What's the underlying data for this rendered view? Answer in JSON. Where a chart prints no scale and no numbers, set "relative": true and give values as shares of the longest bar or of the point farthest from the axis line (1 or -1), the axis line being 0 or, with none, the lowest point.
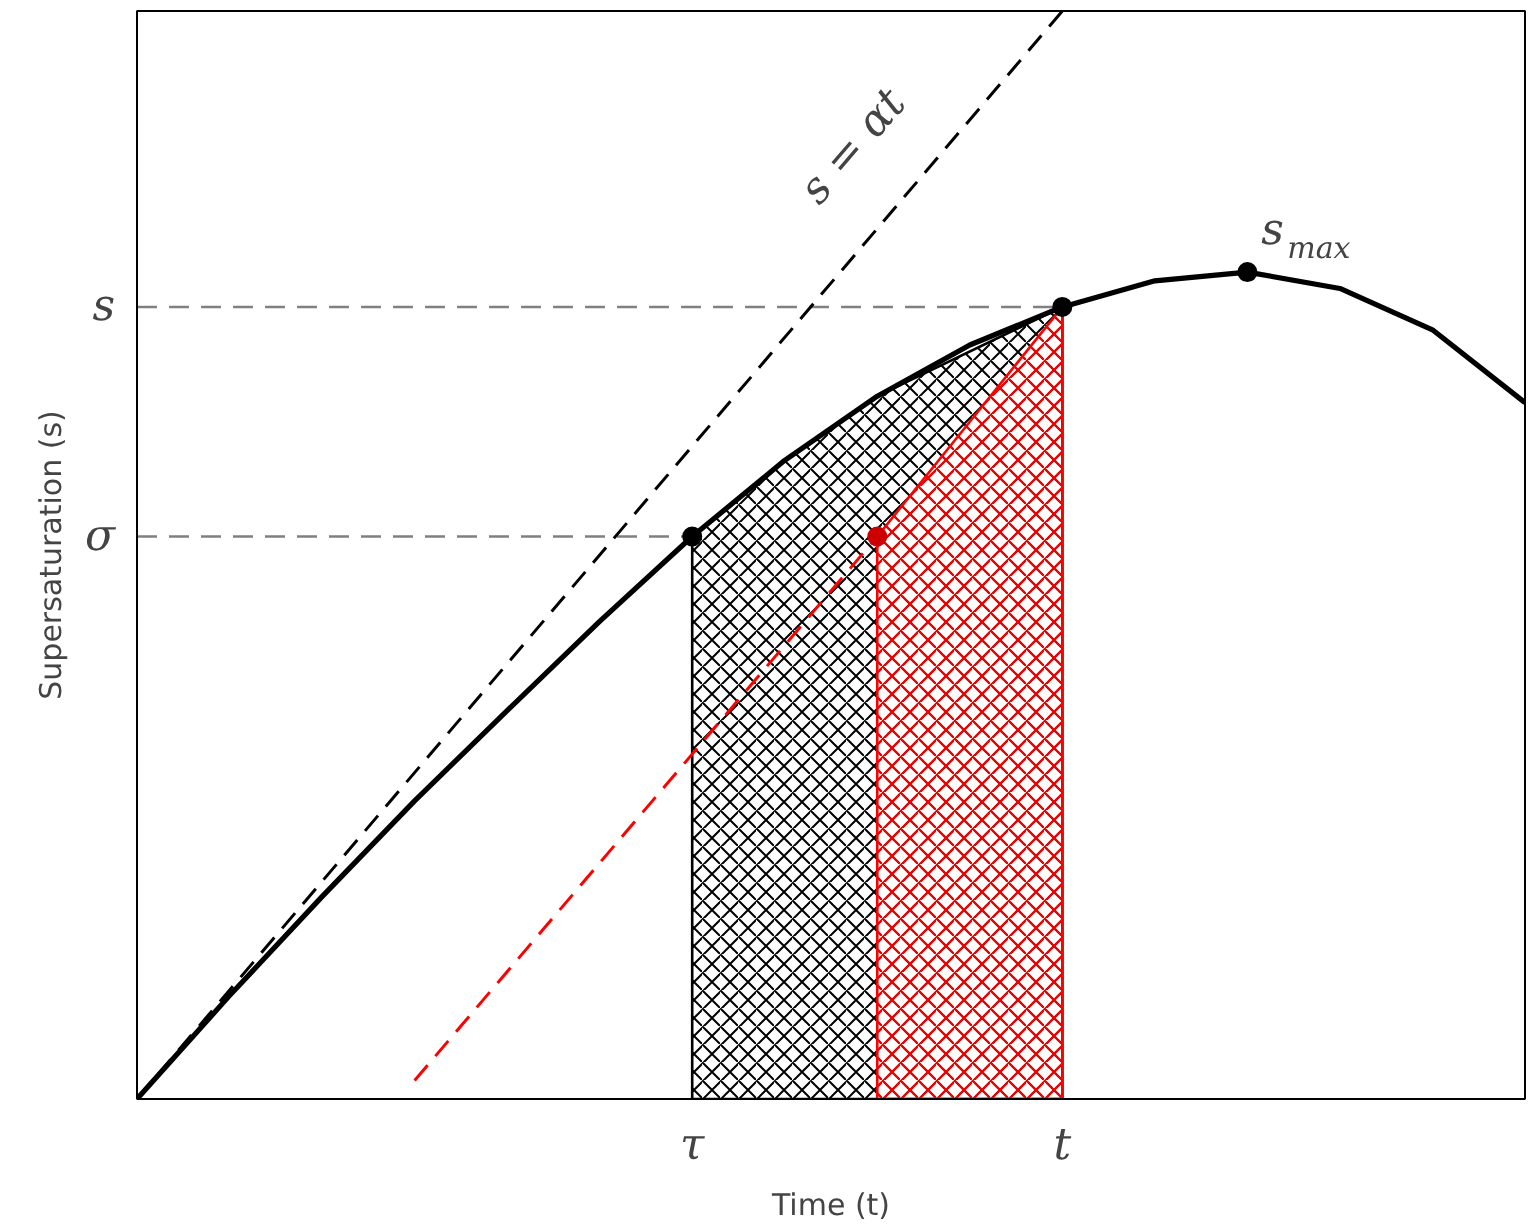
{
  "chart_data": {
    "type": "line",
    "relative": true,
    "xlabel": "Time (t)",
    "ylabel": "Supersaturation (s)",
    "categories": [
      null,
      null,
      null,
      null,
      null,
      null,
      "τ",
      null,
      null,
      null,
      "t",
      null,
      null,
      null,
      null,
      null
    ],
    "grid": false,
    "ref_lines": [
      {
        "axis": "y",
        "value": 0.728,
        "label": "s",
        "color": "#808080",
        "line_style": "dashed"
      },
      {
        "axis": "y",
        "value": 0.517,
        "label": "σ",
        "color": "#808080",
        "line_style": "dashed"
      }
    ],
    "series": [
      {
        "type": "area",
        "color": "#000000",
        "values": [
          null,
          null,
          null,
          null,
          null,
          null,
          0.517,
          0.587,
          0.646,
          null,
          0.728,
          null,
          null,
          null,
          null,
          null
        ]
      },
      {
        "type": "area",
        "color": "#ff0000",
        "values": [
          null,
          null,
          null,
          null,
          null,
          null,
          null,
          null,
          0.517,
          0.6225,
          0.728,
          null,
          null,
          null,
          null,
          null
        ]
      },
      {
        "color": "#000000",
        "line_style": "dashed",
        "values": [
          0,
          null,
          null,
          null,
          null,
          null,
          null,
          null,
          null,
          null,
          1,
          null,
          null,
          null,
          null,
          null
        ]
      },
      {
        "color": "#ff0000",
        "line_style": "dashed",
        "values": [
          null,
          null,
          null,
          0.017,
          null,
          null,
          null,
          null,
          0.517,
          null,
          null,
          null,
          null,
          null,
          null,
          null
        ]
      },
      {
        "color": "#000000",
        "line_style": "solid",
        "values": [
          0,
          0.095,
          0.186,
          0.274,
          0.357,
          0.439,
          0.517,
          0.587,
          0.646,
          0.693,
          0.728,
          0.752,
          0.76,
          0.745,
          0.707,
          0.64
        ]
      },
      {
        "type": "scatter",
        "color": "#000000",
        "marker": "circle",
        "values": [
          null,
          null,
          null,
          null,
          null,
          null,
          0.517,
          null,
          null,
          null,
          0.728,
          null,
          0.76,
          null,
          null,
          null
        ]
      },
      {
        "type": "scatter",
        "color": "#cc0000",
        "marker": "circle",
        "values": [
          null,
          null,
          null,
          null,
          null,
          null,
          null,
          null,
          0.517,
          null,
          null,
          null,
          null,
          null,
          null,
          null
        ]
      }
    ],
    "annotations": [
      "s = αt",
      "s$_{max}$"
    ]
  }
}
